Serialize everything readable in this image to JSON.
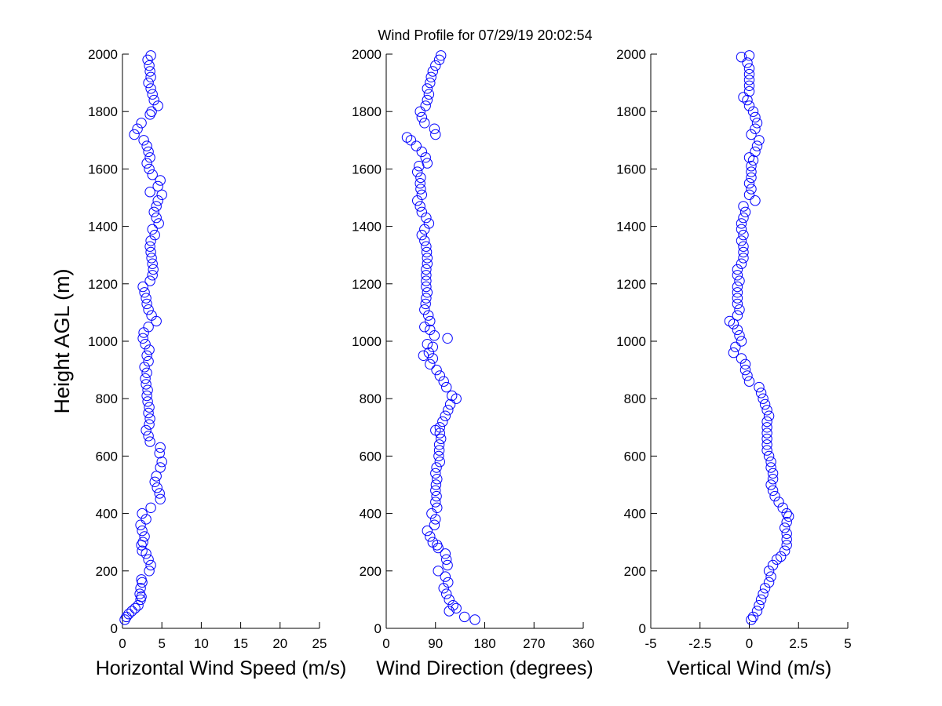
{
  "title": "Wind Profile for  07/29/19 20:02:54",
  "chart_data": {
    "type": "scatter",
    "ylabel": "Height AGL (m)",
    "ylim": [
      0,
      2000
    ],
    "yticks": [
      "0",
      "200",
      "400",
      "600",
      "800",
      "1000",
      "1200",
      "1400",
      "1600",
      "1800",
      "2000"
    ],
    "marker_color": "#0000ff",
    "marker": "open-circle",
    "grid": false,
    "panels": [
      {
        "xlabel": "Horizontal Wind Speed (m/s)",
        "xlim": [
          0,
          25
        ],
        "xticks": [
          "0",
          "5",
          "10",
          "15",
          "20",
          "25"
        ],
        "points": [
          [
            0.3,
            30
          ],
          [
            0.5,
            40
          ],
          [
            0.8,
            50
          ],
          [
            1.2,
            60
          ],
          [
            1.6,
            70
          ],
          [
            2.0,
            80
          ],
          [
            2.3,
            100
          ],
          [
            2.4,
            110
          ],
          [
            2.2,
            120
          ],
          [
            2.3,
            140
          ],
          [
            2.5,
            160
          ],
          [
            2.4,
            170
          ],
          [
            3.4,
            200
          ],
          [
            3.6,
            220
          ],
          [
            3.3,
            240
          ],
          [
            3.0,
            260
          ],
          [
            2.5,
            270
          ],
          [
            2.4,
            290
          ],
          [
            2.6,
            300
          ],
          [
            2.8,
            320
          ],
          [
            2.5,
            340
          ],
          [
            2.3,
            360
          ],
          [
            3.0,
            380
          ],
          [
            2.5,
            400
          ],
          [
            3.6,
            420
          ],
          [
            4.8,
            450
          ],
          [
            4.7,
            470
          ],
          [
            4.4,
            490
          ],
          [
            4.1,
            510
          ],
          [
            4.3,
            530
          ],
          [
            4.8,
            560
          ],
          [
            5.0,
            580
          ],
          [
            4.7,
            610
          ],
          [
            4.8,
            630
          ],
          [
            3.5,
            650
          ],
          [
            3.3,
            670
          ],
          [
            3.0,
            690
          ],
          [
            3.4,
            710
          ],
          [
            3.5,
            730
          ],
          [
            3.3,
            750
          ],
          [
            3.4,
            770
          ],
          [
            3.2,
            790
          ],
          [
            3.1,
            810
          ],
          [
            3.2,
            830
          ],
          [
            3.0,
            850
          ],
          [
            2.9,
            870
          ],
          [
            3.1,
            890
          ],
          [
            2.8,
            910
          ],
          [
            3.3,
            930
          ],
          [
            3.1,
            950
          ],
          [
            3.4,
            970
          ],
          [
            2.9,
            990
          ],
          [
            2.6,
            1010
          ],
          [
            2.7,
            1030
          ],
          [
            3.3,
            1050
          ],
          [
            4.3,
            1070
          ],
          [
            3.7,
            1090
          ],
          [
            3.3,
            1110
          ],
          [
            3.1,
            1130
          ],
          [
            3.0,
            1150
          ],
          [
            2.8,
            1170
          ],
          [
            2.6,
            1190
          ],
          [
            3.5,
            1210
          ],
          [
            3.8,
            1230
          ],
          [
            3.9,
            1250
          ],
          [
            3.8,
            1270
          ],
          [
            3.7,
            1290
          ],
          [
            3.6,
            1310
          ],
          [
            3.5,
            1330
          ],
          [
            3.6,
            1350
          ],
          [
            4.1,
            1370
          ],
          [
            3.8,
            1390
          ],
          [
            4.6,
            1410
          ],
          [
            4.3,
            1430
          ],
          [
            4.0,
            1450
          ],
          [
            4.3,
            1470
          ],
          [
            4.5,
            1490
          ],
          [
            5.0,
            1510
          ],
          [
            3.5,
            1520
          ],
          [
            4.5,
            1540
          ],
          [
            4.8,
            1560
          ],
          [
            3.8,
            1580
          ],
          [
            3.4,
            1600
          ],
          [
            3.1,
            1620
          ],
          [
            3.5,
            1640
          ],
          [
            3.3,
            1660
          ],
          [
            3.1,
            1680
          ],
          [
            2.7,
            1700
          ],
          [
            1.5,
            1720
          ],
          [
            1.9,
            1740
          ],
          [
            2.4,
            1760
          ],
          [
            3.5,
            1790
          ],
          [
            3.7,
            1800
          ],
          [
            4.5,
            1820
          ],
          [
            4.0,
            1840
          ],
          [
            3.8,
            1860
          ],
          [
            3.6,
            1880
          ],
          [
            3.3,
            1900
          ],
          [
            3.6,
            1920
          ],
          [
            3.5,
            1940
          ],
          [
            3.4,
            1960
          ],
          [
            3.2,
            1980
          ],
          [
            3.6,
            1995
          ]
        ]
      },
      {
        "xlabel": "Wind Direction (degrees)",
        "xlim": [
          0,
          360
        ],
        "xticks": [
          "0",
          "90",
          "180",
          "270",
          "360"
        ],
        "points": [
          [
            162,
            30
          ],
          [
            143,
            40
          ],
          [
            115,
            60
          ],
          [
            128,
            70
          ],
          [
            122,
            80
          ],
          [
            115,
            100
          ],
          [
            110,
            120
          ],
          [
            105,
            140
          ],
          [
            113,
            160
          ],
          [
            108,
            180
          ],
          [
            95,
            200
          ],
          [
            112,
            220
          ],
          [
            110,
            240
          ],
          [
            108,
            260
          ],
          [
            95,
            280
          ],
          [
            93,
            290
          ],
          [
            85,
            300
          ],
          [
            80,
            320
          ],
          [
            75,
            340
          ],
          [
            88,
            360
          ],
          [
            90,
            380
          ],
          [
            83,
            400
          ],
          [
            93,
            420
          ],
          [
            90,
            440
          ],
          [
            92,
            460
          ],
          [
            90,
            480
          ],
          [
            91,
            500
          ],
          [
            93,
            520
          ],
          [
            90,
            540
          ],
          [
            92,
            560
          ],
          [
            98,
            580
          ],
          [
            96,
            600
          ],
          [
            97,
            620
          ],
          [
            97,
            640
          ],
          [
            100,
            660
          ],
          [
            98,
            680
          ],
          [
            90,
            690
          ],
          [
            98,
            700
          ],
          [
            103,
            720
          ],
          [
            108,
            740
          ],
          [
            113,
            760
          ],
          [
            117,
            780
          ],
          [
            128,
            800
          ],
          [
            120,
            810
          ],
          [
            110,
            840
          ],
          [
            105,
            860
          ],
          [
            98,
            880
          ],
          [
            92,
            900
          ],
          [
            80,
            920
          ],
          [
            85,
            940
          ],
          [
            68,
            950
          ],
          [
            78,
            960
          ],
          [
            85,
            980
          ],
          [
            75,
            990
          ],
          [
            112,
            1010
          ],
          [
            88,
            1020
          ],
          [
            80,
            1040
          ],
          [
            70,
            1050
          ],
          [
            80,
            1070
          ],
          [
            77,
            1090
          ],
          [
            70,
            1110
          ],
          [
            72,
            1130
          ],
          [
            73,
            1150
          ],
          [
            75,
            1170
          ],
          [
            73,
            1190
          ],
          [
            73,
            1210
          ],
          [
            73,
            1230
          ],
          [
            73,
            1250
          ],
          [
            75,
            1270
          ],
          [
            75,
            1290
          ],
          [
            74,
            1310
          ],
          [
            73,
            1330
          ],
          [
            70,
            1350
          ],
          [
            65,
            1370
          ],
          [
            70,
            1390
          ],
          [
            78,
            1410
          ],
          [
            73,
            1430
          ],
          [
            65,
            1450
          ],
          [
            62,
            1470
          ],
          [
            57,
            1490
          ],
          [
            65,
            1510
          ],
          [
            63,
            1530
          ],
          [
            62,
            1550
          ],
          [
            63,
            1570
          ],
          [
            57,
            1590
          ],
          [
            60,
            1610
          ],
          [
            75,
            1620
          ],
          [
            72,
            1640
          ],
          [
            65,
            1660
          ],
          [
            55,
            1680
          ],
          [
            45,
            1700
          ],
          [
            38,
            1710
          ],
          [
            90,
            1720
          ],
          [
            88,
            1740
          ],
          [
            70,
            1760
          ],
          [
            65,
            1780
          ],
          [
            62,
            1800
          ],
          [
            72,
            1820
          ],
          [
            75,
            1840
          ],
          [
            78,
            1860
          ],
          [
            75,
            1880
          ],
          [
            80,
            1900
          ],
          [
            82,
            1920
          ],
          [
            85,
            1940
          ],
          [
            90,
            1960
          ],
          [
            97,
            1980
          ],
          [
            100,
            1995
          ]
        ]
      },
      {
        "xlabel": "Vertical Wind (m/s)",
        "xlim": [
          -5,
          5
        ],
        "xticks": [
          "-5",
          "-2.5",
          "0",
          "2.5",
          "5"
        ],
        "points": [
          [
            0.1,
            30
          ],
          [
            0.2,
            40
          ],
          [
            0.4,
            60
          ],
          [
            0.5,
            80
          ],
          [
            0.6,
            100
          ],
          [
            0.7,
            120
          ],
          [
            0.8,
            140
          ],
          [
            1.0,
            160
          ],
          [
            1.1,
            180
          ],
          [
            1.0,
            200
          ],
          [
            1.2,
            220
          ],
          [
            1.4,
            240
          ],
          [
            1.6,
            250
          ],
          [
            1.8,
            270
          ],
          [
            1.9,
            290
          ],
          [
            1.9,
            310
          ],
          [
            1.9,
            330
          ],
          [
            1.8,
            350
          ],
          [
            1.9,
            370
          ],
          [
            2.0,
            390
          ],
          [
            1.9,
            400
          ],
          [
            1.7,
            420
          ],
          [
            1.5,
            440
          ],
          [
            1.3,
            460
          ],
          [
            1.2,
            480
          ],
          [
            1.1,
            500
          ],
          [
            1.2,
            520
          ],
          [
            1.2,
            540
          ],
          [
            1.1,
            560
          ],
          [
            1.1,
            580
          ],
          [
            1.0,
            600
          ],
          [
            0.9,
            620
          ],
          [
            0.9,
            640
          ],
          [
            0.9,
            660
          ],
          [
            0.9,
            680
          ],
          [
            0.9,
            700
          ],
          [
            0.9,
            720
          ],
          [
            1.0,
            740
          ],
          [
            0.9,
            760
          ],
          [
            0.8,
            780
          ],
          [
            0.7,
            800
          ],
          [
            0.6,
            820
          ],
          [
            0.5,
            840
          ],
          [
            0.0,
            860
          ],
          [
            -0.1,
            880
          ],
          [
            -0.2,
            900
          ],
          [
            -0.2,
            920
          ],
          [
            -0.4,
            940
          ],
          [
            -0.8,
            960
          ],
          [
            -0.7,
            980
          ],
          [
            -0.4,
            1000
          ],
          [
            -0.5,
            1020
          ],
          [
            -0.6,
            1040
          ],
          [
            -0.8,
            1060
          ],
          [
            -1.0,
            1070
          ],
          [
            -0.6,
            1090
          ],
          [
            -0.5,
            1110
          ],
          [
            -0.6,
            1130
          ],
          [
            -0.6,
            1150
          ],
          [
            -0.6,
            1170
          ],
          [
            -0.6,
            1190
          ],
          [
            -0.5,
            1210
          ],
          [
            -0.6,
            1230
          ],
          [
            -0.6,
            1250
          ],
          [
            -0.4,
            1270
          ],
          [
            -0.3,
            1290
          ],
          [
            -0.3,
            1310
          ],
          [
            -0.3,
            1330
          ],
          [
            -0.4,
            1350
          ],
          [
            -0.3,
            1370
          ],
          [
            -0.4,
            1390
          ],
          [
            -0.4,
            1410
          ],
          [
            -0.3,
            1430
          ],
          [
            -0.2,
            1450
          ],
          [
            -0.3,
            1470
          ],
          [
            0.3,
            1490
          ],
          [
            0.0,
            1510
          ],
          [
            0.1,
            1530
          ],
          [
            0.0,
            1550
          ],
          [
            0.1,
            1570
          ],
          [
            0.1,
            1590
          ],
          [
            0.1,
            1610
          ],
          [
            0.2,
            1630
          ],
          [
            0.0,
            1640
          ],
          [
            0.3,
            1660
          ],
          [
            0.4,
            1680
          ],
          [
            0.5,
            1700
          ],
          [
            0.1,
            1720
          ],
          [
            0.3,
            1740
          ],
          [
            0.4,
            1760
          ],
          [
            0.3,
            1780
          ],
          [
            0.2,
            1800
          ],
          [
            0.0,
            1820
          ],
          [
            -0.1,
            1840
          ],
          [
            -0.3,
            1850
          ],
          [
            0.0,
            1870
          ],
          [
            0.0,
            1890
          ],
          [
            0.0,
            1910
          ],
          [
            0.0,
            1930
          ],
          [
            0.0,
            1950
          ],
          [
            -0.1,
            1970
          ],
          [
            -0.4,
            1990
          ],
          [
            0.0,
            1995
          ]
        ]
      }
    ]
  }
}
